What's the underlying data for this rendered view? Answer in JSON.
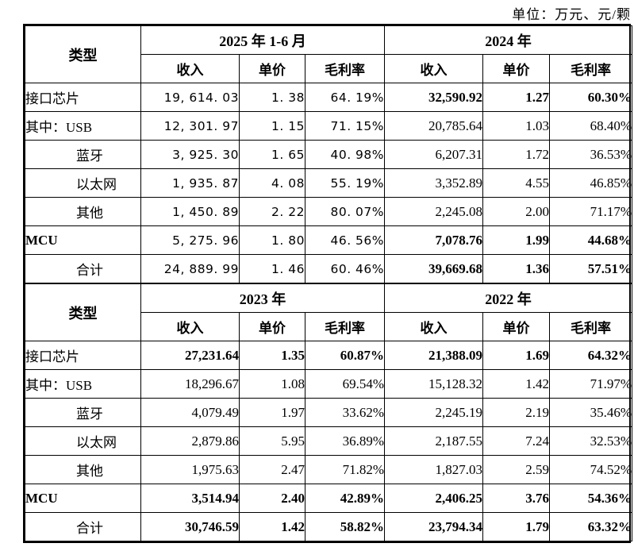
{
  "unit_note": "单位：万元、元/颗",
  "type_header": "类型",
  "sub_headers": [
    "收入",
    "单价",
    "毛利率"
  ],
  "tables": [
    {
      "periods": [
        "2025 年 1-6 月",
        "2024 年"
      ],
      "num_styles": [
        "sans",
        "serif"
      ],
      "rows": [
        {
          "label": "接口芯片",
          "align": "left",
          "label_bold": false,
          "bold": true,
          "values": [
            "19, 614. 03",
            "1. 38",
            "64. 19%",
            "32,590.92",
            "1.27",
            "60.30%"
          ]
        },
        {
          "label": "其中：USB",
          "align": "left",
          "label_bold": false,
          "bold": false,
          "values": [
            "12, 301. 97",
            "1. 15",
            "71. 15%",
            "20,785.64",
            "1.03",
            "68.40%"
          ]
        },
        {
          "label": "蓝牙",
          "align": "indent",
          "label_bold": false,
          "bold": false,
          "values": [
            "3, 925. 30",
            "1. 65",
            "40. 98%",
            "6,207.31",
            "1.72",
            "36.53%"
          ]
        },
        {
          "label": "以太网",
          "align": "indent",
          "label_bold": false,
          "bold": false,
          "values": [
            "1, 935. 87",
            "4. 08",
            "55. 19%",
            "3,352.89",
            "4.55",
            "46.85%"
          ]
        },
        {
          "label": "其他",
          "align": "indent",
          "label_bold": false,
          "bold": false,
          "values": [
            "1, 450. 89",
            "2. 22",
            "80. 07%",
            "2,245.08",
            "2.00",
            "71.17%"
          ]
        },
        {
          "label": "MCU",
          "align": "left",
          "label_bold": true,
          "bold": true,
          "values": [
            "5, 275. 96",
            "1. 80",
            "46. 56%",
            "7,078.76",
            "1.99",
            "44.68%"
          ]
        },
        {
          "label": "合计",
          "align": "indent",
          "label_bold": false,
          "bold": true,
          "values": [
            "24, 889. 99",
            "1. 46",
            "60. 46%",
            "39,669.68",
            "1.36",
            "57.51%"
          ]
        }
      ]
    },
    {
      "periods": [
        "2023 年",
        "2022 年"
      ],
      "num_styles": [
        "serif",
        "serif"
      ],
      "rows": [
        {
          "label": "接口芯片",
          "align": "left",
          "label_bold": false,
          "bold": true,
          "values": [
            "27,231.64",
            "1.35",
            "60.87%",
            "21,388.09",
            "1.69",
            "64.32%"
          ]
        },
        {
          "label": "其中：USB",
          "align": "left",
          "label_bold": false,
          "bold": false,
          "values": [
            "18,296.67",
            "1.08",
            "69.54%",
            "15,128.32",
            "1.42",
            "71.97%"
          ]
        },
        {
          "label": "蓝牙",
          "align": "indent",
          "label_bold": false,
          "bold": false,
          "values": [
            "4,079.49",
            "1.97",
            "33.62%",
            "2,245.19",
            "2.19",
            "35.46%"
          ]
        },
        {
          "label": "以太网",
          "align": "indent",
          "label_bold": false,
          "bold": false,
          "values": [
            "2,879.86",
            "5.95",
            "36.89%",
            "2,187.55",
            "7.24",
            "32.53%"
          ]
        },
        {
          "label": "其他",
          "align": "indent",
          "label_bold": false,
          "bold": false,
          "values": [
            "1,975.63",
            "2.47",
            "71.82%",
            "1,827.03",
            "2.59",
            "74.52%"
          ]
        },
        {
          "label": "MCU",
          "align": "left",
          "label_bold": true,
          "bold": true,
          "values": [
            "3,514.94",
            "2.40",
            "42.89%",
            "2,406.25",
            "3.76",
            "54.36%"
          ]
        },
        {
          "label": "合计",
          "align": "indent",
          "label_bold": false,
          "bold": true,
          "values": [
            "30,746.59",
            "1.42",
            "58.82%",
            "23,794.34",
            "1.79",
            "63.32%"
          ]
        }
      ]
    }
  ]
}
